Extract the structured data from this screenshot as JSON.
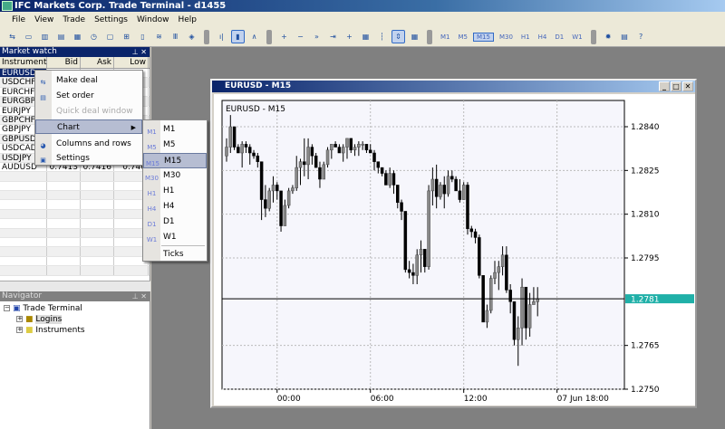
{
  "app": {
    "title": "IFC Markets Corp. Trade Terminal - d1455"
  },
  "menu": [
    "File",
    "View",
    "Trade",
    "Settings",
    "Window",
    "Help"
  ],
  "toolbar": {
    "timeframes": [
      "M1",
      "M5",
      "M15",
      "M30",
      "H1",
      "H4",
      "D1",
      "W1"
    ],
    "active_timeframe": "M15",
    "icons": [
      "make-deal-icon",
      "set-order-icon",
      "market-watch-icon",
      "navigator-icon",
      "terminal-icon",
      "history-icon",
      "new-chart-icon",
      "add-chart-icon",
      "template-icon",
      "profiles-icon",
      "indicators-icon",
      "objects-icon",
      "bar-chart-icon",
      "candle-chart-icon",
      "line-chart-icon",
      "zoom-in-icon",
      "zoom-out-icon",
      "auto-scroll-icon",
      "chart-shift-icon",
      "crosshair-icon",
      "grid-icon",
      "period-sep-icon",
      "scale-fix-icon",
      "settings-icon",
      "calculator-icon",
      "help-icon"
    ]
  },
  "market_watch": {
    "title": "Market watch",
    "columns": [
      "Instrument",
      "Bid",
      "Ask",
      "Low"
    ],
    "rows": [
      {
        "instrument": "EURUSD",
        "bid": "",
        "ask": "",
        "low": ""
      },
      {
        "instrument": "USDCHF",
        "bid": "",
        "ask": "",
        "low": ""
      },
      {
        "instrument": "EURCHF",
        "bid": "",
        "ask": "",
        "low": ""
      },
      {
        "instrument": "EURGBP",
        "bid": "",
        "ask": "",
        "low": ""
      },
      {
        "instrument": "EURJPY",
        "bid": "",
        "ask": "",
        "low": ""
      },
      {
        "instrument": "GBPCHF",
        "bid": "",
        "ask": "",
        "low": ""
      },
      {
        "instrument": "GBPJPY",
        "bid": "",
        "ask": "",
        "low": ""
      },
      {
        "instrument": "GBPUSD",
        "bid": "",
        "ask": "",
        "low": ""
      },
      {
        "instrument": "USDCAD",
        "bid": "",
        "ask": "",
        "low": ""
      },
      {
        "instrument": "USDJPY",
        "bid": "",
        "ask": "",
        "low": ""
      },
      {
        "instrument": "AUDUSD",
        "bid": "0.7413",
        "ask": "0.7416",
        "low": "0.740"
      }
    ],
    "selected": "EURUSD"
  },
  "context_menu": {
    "items": [
      {
        "label": "Make deal",
        "icon": "make-deal-icon"
      },
      {
        "label": "Set order",
        "icon": "set-order-icon"
      },
      {
        "label": "Quick deal window",
        "disabled": true
      },
      {
        "label": "Chart",
        "submenu": true,
        "highlighted": true
      },
      {
        "label": "Columns and rows",
        "icon": "columns-icon"
      },
      {
        "label": "Settings",
        "icon": "settings-icon"
      }
    ]
  },
  "chart_submenu": {
    "items": [
      {
        "label": "M1",
        "icon_text": "M1"
      },
      {
        "label": "M5",
        "icon_text": "M5"
      },
      {
        "label": "M15",
        "icon_text": "M15",
        "highlighted": true
      },
      {
        "label": "M30",
        "icon_text": "M30"
      },
      {
        "label": "H1",
        "icon_text": "H1"
      },
      {
        "label": "H4",
        "icon_text": "H4"
      },
      {
        "label": "D1",
        "icon_text": "D1"
      },
      {
        "label": "W1",
        "icon_text": "W1"
      },
      {
        "label": "Ticks"
      }
    ]
  },
  "navigator": {
    "title": "Navigator",
    "root": "Trade Terminal",
    "children": [
      "Logins",
      "Instruments"
    ]
  },
  "chart_window": {
    "title": "EURUSD - M15"
  },
  "chart_data": {
    "type": "candlestick",
    "title": "EURUSD - M15",
    "ylim": [
      1.275,
      1.285
    ],
    "yticks": [
      "1.2840",
      "1.2825",
      "1.2810",
      "1.2795",
      "1.2765",
      "1.2750"
    ],
    "xticks": [
      {
        "label": "00:00",
        "index": 13
      },
      {
        "label": "06:00",
        "index": 37
      },
      {
        "label": "12:00",
        "index": 61
      },
      {
        "label": "07 Jun 18:00",
        "index": 85
      }
    ],
    "current_price": "1.2781",
    "current_price_color": "#20b0a8",
    "grid": true,
    "ohlc": [
      [
        1.283,
        1.2836,
        1.2828,
        1.2833
      ],
      [
        1.2833,
        1.2844,
        1.2831,
        1.284
      ],
      [
        1.284,
        1.284,
        1.2832,
        1.2833
      ],
      [
        1.2833,
        1.2834,
        1.2831,
        1.2831
      ],
      [
        1.2831,
        1.2835,
        1.2826,
        1.2834
      ],
      [
        1.2834,
        1.2835,
        1.2831,
        1.2833
      ],
      [
        1.2833,
        1.2834,
        1.2827,
        1.2831
      ],
      [
        1.2831,
        1.2832,
        1.2829,
        1.283
      ],
      [
        1.283,
        1.2831,
        1.2826,
        1.2828
      ],
      [
        1.2828,
        1.2828,
        1.2808,
        1.2815
      ],
      [
        1.2815,
        1.282,
        1.2809,
        1.2812
      ],
      [
        1.2812,
        1.2819,
        1.2811,
        1.2818
      ],
      [
        1.2818,
        1.2823,
        1.2814,
        1.282
      ],
      [
        1.282,
        1.2821,
        1.2815,
        1.2818
      ],
      [
        1.2818,
        1.2818,
        1.2804,
        1.2806
      ],
      [
        1.2806,
        1.2815,
        1.2806,
        1.2813
      ],
      [
        1.2813,
        1.2819,
        1.2812,
        1.2818
      ],
      [
        1.2818,
        1.282,
        1.2817,
        1.2819
      ],
      [
        1.2819,
        1.283,
        1.2818,
        1.2826
      ],
      [
        1.2826,
        1.2829,
        1.282,
        1.2828
      ],
      [
        1.2828,
        1.2836,
        1.2823,
        1.2827
      ],
      [
        1.2827,
        1.2836,
        1.2822,
        1.2833
      ],
      [
        1.2833,
        1.2834,
        1.2827,
        1.283
      ],
      [
        1.283,
        1.2831,
        1.2826,
        1.2826
      ],
      [
        1.2826,
        1.2828,
        1.2819,
        1.2822
      ],
      [
        1.2822,
        1.2828,
        1.2822,
        1.2827
      ],
      [
        1.2827,
        1.2833,
        1.2826,
        1.2832
      ],
      [
        1.2832,
        1.2834,
        1.2829,
        1.2834
      ],
      [
        1.2834,
        1.2835,
        1.2833,
        1.2833
      ],
      [
        1.2833,
        1.2834,
        1.2831,
        1.2831
      ],
      [
        1.2831,
        1.2834,
        1.2828,
        1.2833
      ],
      [
        1.2833,
        1.2836,
        1.2829,
        1.2836
      ],
      [
        1.2836,
        1.2836,
        1.2831,
        1.2832
      ],
      [
        1.2832,
        1.2834,
        1.283,
        1.2833
      ],
      [
        1.2833,
        1.2835,
        1.283,
        1.2834
      ],
      [
        1.2834,
        1.2835,
        1.2832,
        1.2834
      ],
      [
        1.2834,
        1.2834,
        1.2831,
        1.2832
      ],
      [
        1.2832,
        1.2834,
        1.2831,
        1.2831
      ],
      [
        1.2831,
        1.2832,
        1.2825,
        1.2828
      ],
      [
        1.2828,
        1.2828,
        1.2824,
        1.2826
      ],
      [
        1.2826,
        1.2826,
        1.2823,
        1.2824
      ],
      [
        1.2824,
        1.2825,
        1.282,
        1.282
      ],
      [
        1.282,
        1.2826,
        1.2819,
        1.2824
      ],
      [
        1.2824,
        1.2825,
        1.2817,
        1.282
      ],
      [
        1.282,
        1.282,
        1.2812,
        1.2814
      ],
      [
        1.2814,
        1.2815,
        1.2808,
        1.2811
      ],
      [
        1.2811,
        1.2811,
        1.279,
        1.2791
      ],
      [
        1.2791,
        1.2794,
        1.2788,
        1.279
      ],
      [
        1.279,
        1.2793,
        1.2786,
        1.2789
      ],
      [
        1.2789,
        1.2798,
        1.2786,
        1.2796
      ],
      [
        1.2796,
        1.2801,
        1.279,
        1.2798
      ],
      [
        1.2798,
        1.2798,
        1.279,
        1.2792
      ],
      [
        1.2792,
        1.282,
        1.2791,
        1.2818
      ],
      [
        1.2818,
        1.2826,
        1.2813,
        1.2822
      ],
      [
        1.2822,
        1.2827,
        1.2812,
        1.2816
      ],
      [
        1.2816,
        1.2821,
        1.2815,
        1.282
      ],
      [
        1.282,
        1.2823,
        1.2812,
        1.2817
      ],
      [
        1.2817,
        1.2825,
        1.2816,
        1.2823
      ],
      [
        1.2823,
        1.2825,
        1.2821,
        1.2822
      ],
      [
        1.2822,
        1.2823,
        1.2818,
        1.2818
      ],
      [
        1.2818,
        1.2822,
        1.2814,
        1.2815
      ],
      [
        1.2815,
        1.2821,
        1.2815,
        1.282
      ],
      [
        1.282,
        1.2821,
        1.2803,
        1.2805
      ],
      [
        1.2805,
        1.2806,
        1.2802,
        1.2804
      ],
      [
        1.2804,
        1.2805,
        1.28,
        1.2802
      ],
      [
        1.2802,
        1.2803,
        1.2788,
        1.2789
      ],
      [
        1.2789,
        1.2789,
        1.2773,
        1.2773
      ],
      [
        1.2773,
        1.2779,
        1.2771,
        1.2777
      ],
      [
        1.2777,
        1.2789,
        1.2776,
        1.2788
      ],
      [
        1.2788,
        1.2794,
        1.2786,
        1.279
      ],
      [
        1.279,
        1.2794,
        1.2784,
        1.2792
      ],
      [
        1.2792,
        1.2799,
        1.2789,
        1.2796
      ],
      [
        1.2796,
        1.2799,
        1.2783,
        1.2784
      ],
      [
        1.2784,
        1.2786,
        1.2776,
        1.278
      ],
      [
        1.278,
        1.278,
        1.2765,
        1.2767
      ],
      [
        1.2767,
        1.2775,
        1.2758,
        1.2771
      ],
      [
        1.2771,
        1.2788,
        1.2765,
        1.2785
      ],
      [
        1.2785,
        1.2785,
        1.2767,
        1.2771
      ],
      [
        1.2771,
        1.2783,
        1.2768,
        1.2779
      ],
      [
        1.2779,
        1.2785,
        1.2779,
        1.278
      ],
      [
        1.278,
        1.2785,
        1.2775,
        1.2781
      ]
    ]
  }
}
